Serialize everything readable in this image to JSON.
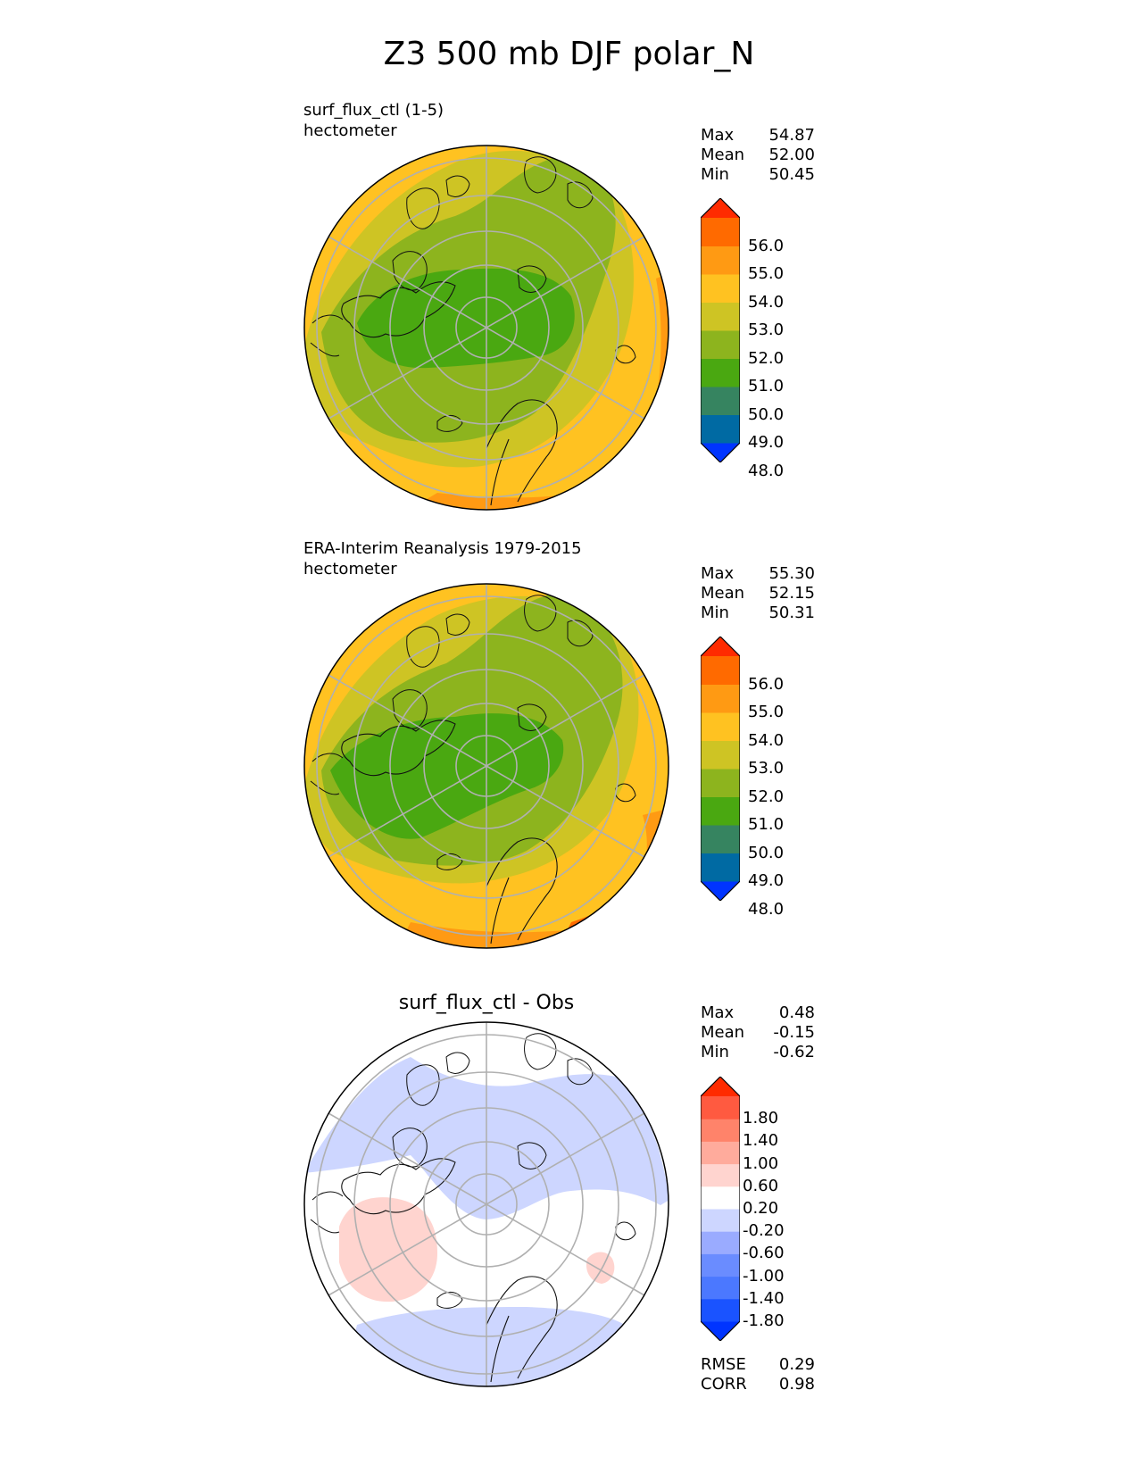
{
  "figure_title": "Z3 500 mb DJF polar_N",
  "colors": {
    "ctl_levels": [
      "#0034ff",
      "#006aa3",
      "#368460",
      "#4aa811",
      "#8db41e",
      "#cec424",
      "#ffc221",
      "#ff9a13",
      "#ff6a00",
      "#ff2b00"
    ],
    "diff_levels": [
      "#0034ff",
      "#1a53ff",
      "#4b78ff",
      "#6a8cff",
      "#9aabff",
      "#cdd6ff",
      "#ffffff",
      "#ffd4cf",
      "#ffab9c",
      "#ff836a",
      "#ff5a40",
      "#ff2b00"
    ],
    "coastline": "#111111",
    "grid": "#b0b0b0"
  },
  "panels": [
    {
      "id": "test",
      "title_line1": "surf_flux_ctl (1-5)",
      "title_line2": "hectometer",
      "stats": {
        "max_label": "Max",
        "max": "54.87",
        "mean_label": "Mean",
        "mean": "52.00",
        "min_label": "Min",
        "min": "50.45"
      }
    },
    {
      "id": "ref",
      "title_line1": "ERA-Interim Reanalysis 1979-2015",
      "title_line2": "hectometer",
      "stats": {
        "max_label": "Max",
        "max": "55.30",
        "mean_label": "Mean",
        "mean": "52.15",
        "min_label": "Min",
        "min": "50.31"
      }
    },
    {
      "id": "diff",
      "title": "surf_flux_ctl - Obs",
      "stats": {
        "max_label": "Max",
        "max": "0.48",
        "mean_label": "Mean",
        "mean": "-0.15",
        "min_label": "Min",
        "min": "-0.62"
      },
      "metrics": {
        "rmse_label": "RMSE",
        "rmse": "0.29",
        "corr_label": "CORR",
        "corr": "0.98"
      }
    }
  ],
  "chart_data": [
    {
      "type": "heatmap",
      "projection": "north-polar-stereographic",
      "title": "surf_flux_ctl (1-5)",
      "units": "hectometer",
      "colorbar": {
        "ticks": [
          "56.0",
          "55.0",
          "54.0",
          "53.0",
          "52.0",
          "51.0",
          "50.0",
          "49.0",
          "48.0"
        ],
        "extend": "both"
      },
      "field_bands_hectometer": [
        [
          50,
          51
        ],
        [
          51,
          52
        ],
        [
          52,
          53
        ],
        [
          53,
          54
        ],
        [
          54,
          55
        ]
      ],
      "stats": {
        "max": 54.87,
        "mean": 52.0,
        "min": 50.45
      }
    },
    {
      "type": "heatmap",
      "projection": "north-polar-stereographic",
      "title": "ERA-Interim Reanalysis 1979-2015",
      "units": "hectometer",
      "colorbar": {
        "ticks": [
          "56.0",
          "55.0",
          "54.0",
          "53.0",
          "52.0",
          "51.0",
          "50.0",
          "49.0",
          "48.0"
        ],
        "extend": "both"
      },
      "field_bands_hectometer": [
        [
          50,
          51
        ],
        [
          51,
          52
        ],
        [
          52,
          53
        ],
        [
          53,
          54
        ],
        [
          54,
          55
        ],
        [
          55,
          56
        ]
      ],
      "stats": {
        "max": 55.3,
        "mean": 52.15,
        "min": 50.31
      }
    },
    {
      "type": "heatmap",
      "projection": "north-polar-stereographic",
      "title": "surf_flux_ctl - Obs",
      "colorbar": {
        "ticks": [
          "1.80",
          "1.40",
          "1.00",
          "0.60",
          "0.20",
          "-0.20",
          "-0.60",
          "-1.00",
          "-1.40",
          "-1.80"
        ],
        "extend": "both"
      },
      "field_bands": [
        [
          -0.6,
          -0.2
        ],
        [
          -0.2,
          0.2
        ],
        [
          0.2,
          0.6
        ]
      ],
      "stats": {
        "max": 0.48,
        "mean": -0.15,
        "min": -0.62
      },
      "rmse": 0.29,
      "corr": 0.98
    }
  ]
}
